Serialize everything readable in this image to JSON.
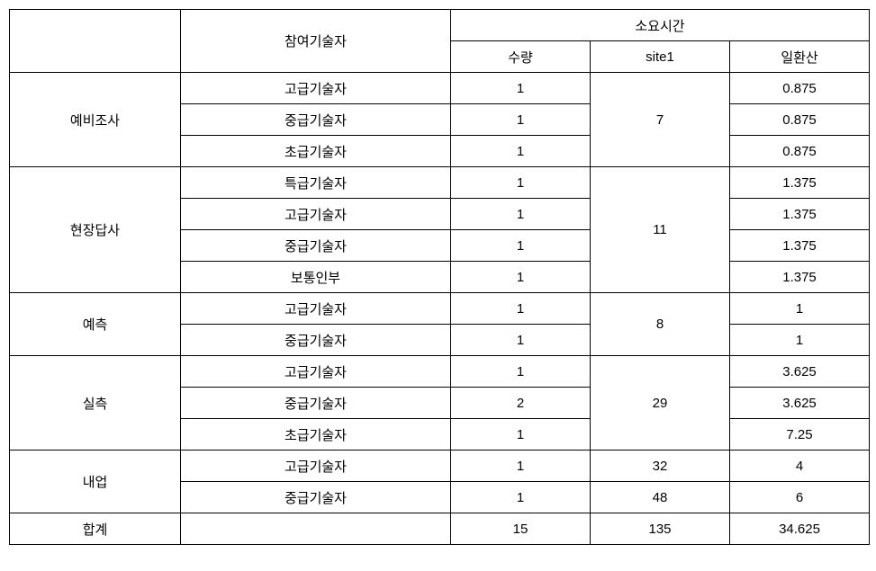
{
  "headers": {
    "blank": "",
    "participant": "참여기술자",
    "duration_group": "소요시간",
    "qty": "수량",
    "site1": "site1",
    "dayconv": "일환산"
  },
  "groups": [
    {
      "name": "예비조사",
      "site1": "7",
      "rows": [
        {
          "tech": "고급기술자",
          "qty": "1",
          "dayconv": "0.875"
        },
        {
          "tech": "중급기술자",
          "qty": "1",
          "dayconv": "0.875"
        },
        {
          "tech": "초급기술자",
          "qty": "1",
          "dayconv": "0.875"
        }
      ]
    },
    {
      "name": "현장답사",
      "site1": "11",
      "rows": [
        {
          "tech": "특급기술자",
          "qty": "1",
          "dayconv": "1.375"
        },
        {
          "tech": "고급기술자",
          "qty": "1",
          "dayconv": "1.375"
        },
        {
          "tech": "중급기술자",
          "qty": "1",
          "dayconv": "1.375"
        },
        {
          "tech": "보통인부",
          "qty": "1",
          "dayconv": "1.375"
        }
      ]
    },
    {
      "name": "예측",
      "site1": "8",
      "rows": [
        {
          "tech": "고급기술자",
          "qty": "1",
          "dayconv": "1"
        },
        {
          "tech": "중급기술자",
          "qty": "1",
          "dayconv": "1"
        }
      ]
    },
    {
      "name": "실측",
      "site1": "29",
      "rows": [
        {
          "tech": "고급기술자",
          "qty": "1",
          "dayconv": "3.625"
        },
        {
          "tech": "중급기술자",
          "qty": "2",
          "dayconv": "3.625"
        },
        {
          "tech": "초급기술자",
          "qty": "1",
          "dayconv": "7.25"
        }
      ]
    },
    {
      "name": "내업",
      "site1_per_row": true,
      "rows": [
        {
          "tech": "고급기술자",
          "qty": "1",
          "site1": "32",
          "dayconv": "4"
        },
        {
          "tech": "중급기술자",
          "qty": "1",
          "site1": "48",
          "dayconv": "6"
        }
      ]
    }
  ],
  "totals": {
    "label": "합계",
    "qty": "15",
    "site1": "135",
    "dayconv": "34.625"
  }
}
